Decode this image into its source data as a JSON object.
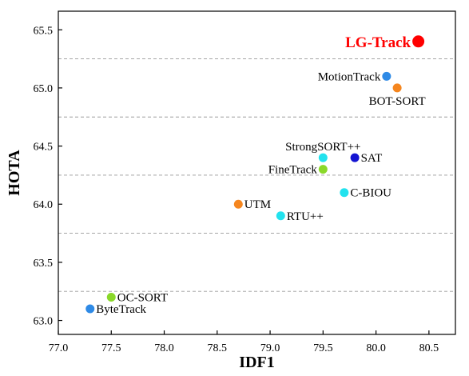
{
  "chart_data": {
    "type": "scatter",
    "xlabel": "IDF1",
    "ylabel": "HOTA",
    "xlim": [
      77.0,
      80.75
    ],
    "ylim": [
      62.88,
      65.66
    ],
    "xticks": [
      "77.0",
      "77.5",
      "78.0",
      "78.5",
      "79.0",
      "79.5",
      "80.0",
      "80.5"
    ],
    "yticks": [
      "63.0",
      "63.5",
      "64.0",
      "64.5",
      "65.0",
      "65.5"
    ],
    "grid": "horizontal dashed",
    "points": [
      {
        "label": "LG-Track",
        "x": 80.4,
        "y": 65.4,
        "color": "#ff0000",
        "highlight": true,
        "label_side": "left"
      },
      {
        "label": "MotionTrack",
        "x": 80.1,
        "y": 65.1,
        "color": "#2e8ae6",
        "label_side": "left"
      },
      {
        "label": "BOT-SORT",
        "x": 80.2,
        "y": 65.0,
        "color": "#f5861f",
        "label_side": "below"
      },
      {
        "label": "StrongSORT++",
        "x": 79.5,
        "y": 64.4,
        "color": "#22e2ee",
        "label_side": "above"
      },
      {
        "label": "SAT",
        "x": 79.8,
        "y": 64.4,
        "color": "#1414d2",
        "label_side": "right"
      },
      {
        "label": "FineTrack",
        "x": 79.5,
        "y": 64.3,
        "color": "#8ad82a",
        "label_side": "left"
      },
      {
        "label": "C-BIOU",
        "x": 79.7,
        "y": 64.1,
        "color": "#22e2ee",
        "label_side": "right"
      },
      {
        "label": "UTM",
        "x": 78.7,
        "y": 64.0,
        "color": "#f5861f",
        "label_side": "right"
      },
      {
        "label": "RTU++",
        "x": 79.1,
        "y": 63.9,
        "color": "#22e2ee",
        "label_side": "right"
      },
      {
        "label": "OC-SORT",
        "x": 77.5,
        "y": 63.2,
        "color": "#8ad82a",
        "label_side": "right"
      },
      {
        "label": "ByteTrack",
        "x": 77.3,
        "y": 63.1,
        "color": "#2e8ae6",
        "label_side": "right"
      }
    ]
  }
}
